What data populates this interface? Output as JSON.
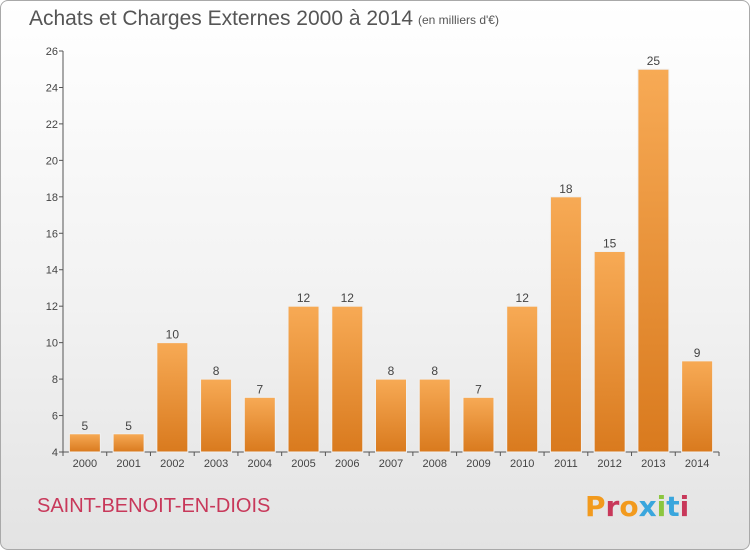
{
  "header": {
    "title": "Achats et Charges Externes 2000 à 2014",
    "subtitle": "(en milliers d'€)"
  },
  "footer": {
    "commune": "SAINT-BENOIT-EN-DIOIS",
    "logo_text": "Proxiti",
    "logo_colors": [
      "#f29a1d",
      "#c8385a",
      "#f29a1d",
      "#3aa6dd",
      "#8cc63f",
      "#3aa6dd",
      "#c8385a"
    ]
  },
  "colors": {
    "bar_light": "#f7aa55",
    "bar_dark": "#d97a1e",
    "axis": "#555555",
    "title": "#555555",
    "commune": "#c8385a"
  },
  "chart_data": {
    "type": "bar",
    "title": "Achats et Charges Externes 2000 à 2014",
    "subtitle": "(en milliers d'€)",
    "xlabel": "",
    "ylabel": "",
    "categories": [
      "2000",
      "2001",
      "2002",
      "2003",
      "2004",
      "2005",
      "2006",
      "2007",
      "2008",
      "2009",
      "2010",
      "2011",
      "2012",
      "2013",
      "2014"
    ],
    "values": [
      5,
      5,
      10,
      8,
      7,
      12,
      12,
      8,
      8,
      7,
      12,
      18,
      15,
      25,
      9
    ],
    "ylim": [
      4,
      26
    ],
    "yticks": [
      4,
      6,
      8,
      10,
      12,
      14,
      16,
      18,
      20,
      22,
      24,
      26
    ],
    "grid": false,
    "data_labels": true
  }
}
